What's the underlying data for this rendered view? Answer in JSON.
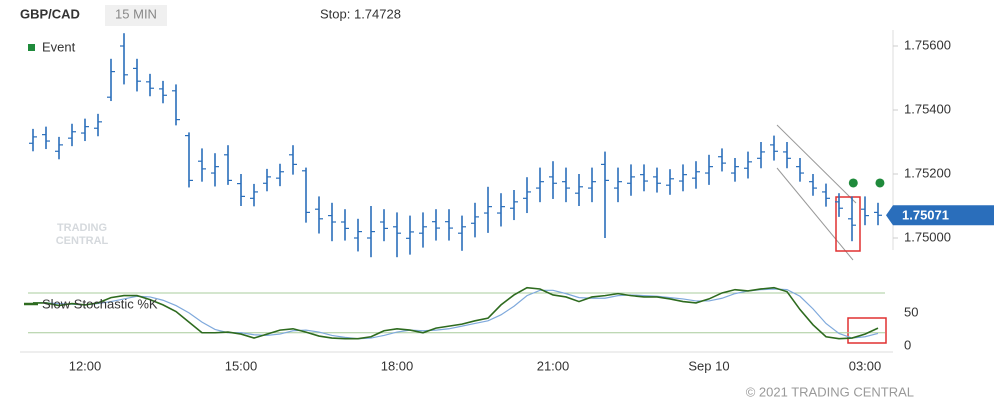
{
  "chart_data": [
    {
      "type": "ohlc",
      "title": "GBP/CAD",
      "subtitle": "15 MIN",
      "annotation": "Stop: 1.74728",
      "color": "#2a6ebb",
      "categories": [
        null,
        null,
        null,
        null,
        "12:00",
        null,
        null,
        null,
        null,
        null,
        null,
        null,
        null,
        null,
        null,
        null,
        "15:00",
        null,
        null,
        null,
        null,
        null,
        null,
        null,
        null,
        null,
        null,
        null,
        "18:00",
        null,
        null,
        null,
        null,
        null,
        null,
        null,
        null,
        null,
        null,
        null,
        "21:00",
        null,
        null,
        null,
        null,
        null,
        null,
        null,
        null,
        null,
        null,
        null,
        "Sep 10",
        null,
        null,
        null,
        null,
        null,
        null,
        null,
        null,
        null,
        null,
        null,
        "03:00",
        null
      ],
      "open": [
        1.75296,
        1.75323,
        1.75271,
        1.75312,
        1.75328,
        1.75343,
        1.7544,
        1.756,
        1.7553,
        1.75488,
        1.75466,
        1.7546,
        1.7532,
        1.7524,
        1.75203,
        1.7526,
        1.7517,
        1.75124,
        1.75171,
        1.75187,
        1.7526,
        1.7521,
        1.7509,
        1.7507,
        1.7505,
        1.75,
        1.75,
        1.7505,
        1.75035,
        1.74999,
        1.75015,
        1.75051,
        1.75051,
        1.75015,
        1.75046,
        1.75078,
        1.75078,
        1.75093,
        1.75124,
        1.75156,
        1.75191,
        1.75176,
        1.7514,
        1.75156,
        1.7523,
        1.75156,
        1.75171,
        1.75198,
        1.75191,
        1.75165,
        1.75178,
        1.75187,
        1.75203,
        1.75254,
        1.75203,
        1.75218,
        1.75249,
        1.75291,
        1.75269,
        1.75223,
        1.75176,
        1.75144,
        1.75113,
        1.7506,
        1.7509,
        1.7508
      ],
      "high": [
        1.75341,
        1.75348,
        1.75316,
        1.75357,
        1.75373,
        1.75388,
        1.7556,
        1.7564,
        1.7556,
        1.75513,
        1.75491,
        1.7548,
        1.7533,
        1.7528,
        1.75265,
        1.7529,
        1.752,
        1.75169,
        1.75216,
        1.75232,
        1.7529,
        1.7522,
        1.7513,
        1.7511,
        1.7509,
        1.7506,
        1.751,
        1.7509,
        1.7508,
        1.7507,
        1.7508,
        1.7509,
        1.7509,
        1.7507,
        1.7511,
        1.7516,
        1.7514,
        1.7515,
        1.7519,
        1.7522,
        1.7524,
        1.7522,
        1.752,
        1.7522,
        1.7527,
        1.7522,
        1.7523,
        1.7523,
        1.7522,
        1.75215,
        1.7523,
        1.7524,
        1.7526,
        1.7528,
        1.7525,
        1.7527,
        1.753,
        1.7532,
        1.753,
        1.7525,
        1.752,
        1.7517,
        1.7514,
        1.7513,
        1.7513,
        1.7511
      ],
      "low": [
        1.75271,
        1.75278,
        1.75246,
        1.75287,
        1.75303,
        1.75318,
        1.75428,
        1.7548,
        1.75458,
        1.75443,
        1.75421,
        1.75352,
        1.75158,
        1.75176,
        1.75161,
        1.75166,
        1.751,
        1.75099,
        1.75146,
        1.75162,
        1.75198,
        1.75048,
        1.75014,
        1.7499,
        1.74992,
        1.74958,
        1.7494,
        1.7499,
        1.7494,
        1.74948,
        1.7497,
        1.74992,
        1.74992,
        1.7496,
        1.75002,
        1.75016,
        1.75036,
        1.75056,
        1.75078,
        1.75112,
        1.75122,
        1.75112,
        1.751,
        1.75112,
        1.75,
        1.75112,
        1.75132,
        1.75146,
        1.75142,
        1.75135,
        1.75146,
        1.75154,
        1.75166,
        1.75208,
        1.75176,
        1.75186,
        1.75218,
        1.75242,
        1.75218,
        1.75176,
        1.75132,
        1.75098,
        1.75066,
        1.7499,
        1.7504,
        1.7504
      ],
      "close": [
        1.75316,
        1.75303,
        1.75291,
        1.75332,
        1.75348,
        1.75363,
        1.7552,
        1.7551,
        1.7549,
        1.75468,
        1.75446,
        1.7537,
        1.7518,
        1.75216,
        1.75223,
        1.7518,
        1.7513,
        1.75144,
        1.75191,
        1.75207,
        1.7523,
        1.7508,
        1.7506,
        1.7505,
        1.7503,
        1.7502,
        1.7502,
        1.7503,
        1.75015,
        1.75019,
        1.75035,
        1.75031,
        1.75031,
        1.75035,
        1.75066,
        1.75098,
        1.75098,
        1.75113,
        1.75144,
        1.75176,
        1.75171,
        1.75156,
        1.7516,
        1.75176,
        1.7518,
        1.75176,
        1.75191,
        1.75178,
        1.75171,
        1.75185,
        1.75198,
        1.75207,
        1.75223,
        1.75234,
        1.75223,
        1.75238,
        1.75269,
        1.75271,
        1.75249,
        1.75203,
        1.75156,
        1.75124,
        1.75093,
        1.7504,
        1.7507,
        1.75071
      ],
      "ylim": [
        1.749,
        1.7565
      ],
      "yticks": [
        {
          "value": 1.75,
          "label": "1.75000"
        },
        {
          "value": 1.752,
          "label": "1.75200"
        },
        {
          "value": 1.754,
          "label": "1.75400"
        },
        {
          "value": 1.756,
          "label": "1.75600"
        }
      ],
      "last_price": 1.75071,
      "events": {
        "name": "Event",
        "color": "#1f8a3b",
        "x": [
          63.1,
          65.15
        ],
        "values": [
          1.75172,
          1.75172
        ]
      },
      "watermark": [
        "TRADING",
        "CENTRAL"
      ]
    },
    {
      "type": "line",
      "series": [
        {
          "name": "Slow Stochastic %K",
          "color": "#2e6b1f",
          "values": [
            65,
            65,
            61,
            64,
            62,
            65,
            73,
            76,
            76,
            70,
            62,
            52,
            36,
            20,
            20,
            21,
            18,
            12,
            18,
            24,
            26,
            21,
            15,
            12,
            11,
            11,
            14,
            23,
            26,
            24,
            20,
            27,
            30,
            33,
            38,
            42,
            62,
            77,
            88,
            86,
            77,
            74,
            67,
            74,
            76,
            79,
            76,
            74,
            74,
            71,
            67,
            65,
            71,
            80,
            85,
            83,
            86,
            88,
            82,
            55,
            32,
            14,
            11,
            12,
            18,
            27
          ]
        },
        {
          "color": "#7fa9dc",
          "values": [
            65,
            65,
            64,
            63,
            62,
            64,
            67,
            71,
            75,
            74,
            69,
            61,
            50,
            36,
            25,
            20,
            20,
            17,
            16,
            18,
            23,
            24,
            21,
            16,
            13,
            11,
            12,
            16,
            21,
            24,
            23,
            24,
            26,
            30,
            34,
            38,
            47,
            60,
            76,
            84,
            84,
            79,
            73,
            72,
            72,
            76,
            77,
            76,
            75,
            73,
            71,
            68,
            68,
            72,
            79,
            83,
            85,
            86,
            85,
            75,
            56,
            34,
            19,
            12,
            14,
            19
          ]
        }
      ],
      "levels": [
        20,
        80
      ],
      "ylim": [
        -6,
        92
      ],
      "yticks": [
        0,
        50
      ]
    }
  ],
  "footer": "© 2021 TRADING CENTRAL"
}
